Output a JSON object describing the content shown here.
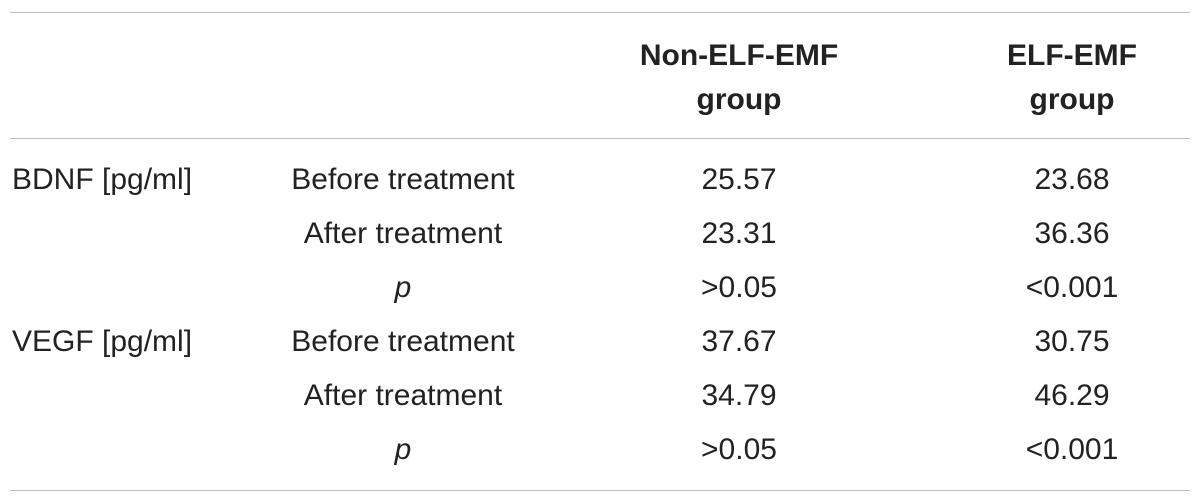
{
  "table": {
    "headers": {
      "col3_line1": "Non-ELF-EMF",
      "col3_line2": "group",
      "col4_line1": "ELF-EMF",
      "col4_line2": "group"
    },
    "rows": [
      {
        "param": "BDNF [pg/ml]",
        "label": "Before treatment",
        "non_elf": "25.57",
        "elf": "23.68"
      },
      {
        "param": "",
        "label": "After treatment",
        "non_elf": "23.31",
        "elf": "36.36"
      },
      {
        "param": "",
        "label": "p",
        "non_elf": ">0.05",
        "elf": "<0.001"
      },
      {
        "param": "VEGF [pg/ml]",
        "label": "Before treatment",
        "non_elf": "37.67",
        "elf": "30.75"
      },
      {
        "param": "",
        "label": "After treatment",
        "non_elf": "34.79",
        "elf": "46.29"
      },
      {
        "param": "",
        "label": "p",
        "non_elf": ">0.05",
        "elf": "<0.001"
      }
    ]
  }
}
